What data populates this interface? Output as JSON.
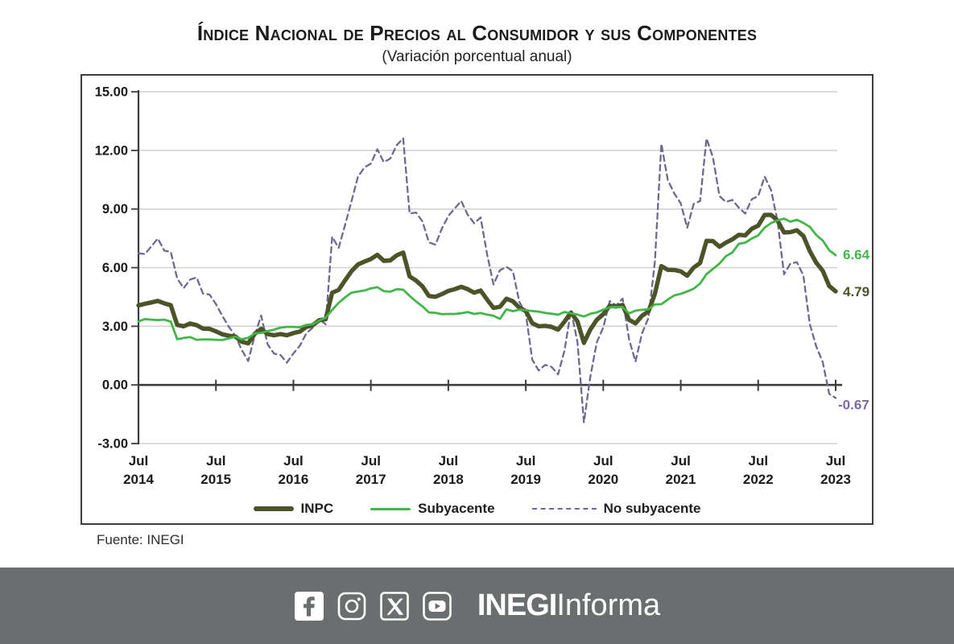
{
  "title": "Índice Nacional de Precios al Consumidor y sus Componentes",
  "subtitle": "(Variación porcentual anual)",
  "source": "Fuente: INEGI",
  "footer": {
    "background": "#6b6e6f",
    "brand_bold": "INEGI",
    "brand_light": "Informa",
    "icons": [
      "facebook-icon",
      "instagram-icon",
      "x-icon",
      "youtube-icon"
    ]
  },
  "chart_data": {
    "type": "line",
    "title": "Índice Nacional de Precios al Consumidor y sus Componentes",
    "subtitle": "(Variación porcentual anual)",
    "frequency": "monthly",
    "x_start": "Jul 2014",
    "x_end": "Jul 2023",
    "ylim": [
      -3,
      15
    ],
    "grid": true,
    "legend_position": "bottom",
    "y_ticks": [
      {
        "label": "15.00",
        "value": 15
      },
      {
        "label": "12.00",
        "value": 12
      },
      {
        "label": "9.00",
        "value": 9
      },
      {
        "label": "6.00",
        "value": 6
      },
      {
        "label": "3.00",
        "value": 3
      },
      {
        "label": "0.00",
        "value": 0
      },
      {
        "label": "-3.00",
        "value": -3
      }
    ],
    "x_tick_labels": [
      {
        "month": "Jul",
        "year": "2014"
      },
      {
        "month": "Jul",
        "year": "2015"
      },
      {
        "month": "Jul",
        "year": "2016"
      },
      {
        "month": "Jul",
        "year": "2017"
      },
      {
        "month": "Jul",
        "year": "2018"
      },
      {
        "month": "Jul",
        "year": "2019"
      },
      {
        "month": "Jul",
        "year": "2020"
      },
      {
        "month": "Jul",
        "year": "2021"
      },
      {
        "month": "Jul",
        "year": "2022"
      },
      {
        "month": "Jul",
        "year": "2023"
      }
    ],
    "series": [
      {
        "name": "INPC",
        "color": "#4d5228",
        "style": "solid",
        "width": 5.4,
        "end_label": "4.79",
        "end_label_color": "#4d5228",
        "label_dx": 9,
        "label_dy": 6,
        "values": [
          4.07,
          4.15,
          4.22,
          4.3,
          4.17,
          4.08,
          3.07,
          3.0,
          3.14,
          3.06,
          2.88,
          2.87,
          2.74,
          2.59,
          2.52,
          2.48,
          2.21,
          2.13,
          2.61,
          2.87,
          2.6,
          2.54,
          2.6,
          2.54,
          2.65,
          2.73,
          2.97,
          3.06,
          3.31,
          3.36,
          4.72,
          4.86,
          5.35,
          5.82,
          6.16,
          6.31,
          6.44,
          6.66,
          6.35,
          6.37,
          6.63,
          6.77,
          5.55,
          5.34,
          5.04,
          4.55,
          4.51,
          4.65,
          4.81,
          4.9,
          5.02,
          4.9,
          4.72,
          4.83,
          4.37,
          3.94,
          4.0,
          4.41,
          4.28,
          3.95,
          3.78,
          3.16,
          3.0,
          3.02,
          2.97,
          2.83,
          3.24,
          3.7,
          3.25,
          2.15,
          2.84,
          3.33,
          3.62,
          4.05,
          4.01,
          4.09,
          3.33,
          3.15,
          3.54,
          3.76,
          4.67,
          6.08,
          5.89,
          5.88,
          5.81,
          5.59,
          6.0,
          6.24,
          7.37,
          7.36,
          7.07,
          7.28,
          7.45,
          7.68,
          7.65,
          7.99,
          8.15,
          8.7,
          8.7,
          8.41,
          7.8,
          7.82,
          7.91,
          7.62,
          6.85,
          6.25,
          5.84,
          5.06,
          4.79
        ]
      },
      {
        "name": "Subyacente",
        "color": "#43b649",
        "style": "solid",
        "width": 2.8,
        "end_label": "6.64",
        "end_label_color": "#45b549",
        "label_dx": 9,
        "label_dy": 5,
        "values": [
          3.25,
          3.37,
          3.34,
          3.32,
          3.34,
          3.24,
          2.34,
          2.4,
          2.45,
          2.31,
          2.33,
          2.33,
          2.31,
          2.3,
          2.38,
          2.47,
          2.34,
          2.41,
          2.64,
          2.66,
          2.76,
          2.83,
          2.93,
          2.97,
          2.97,
          2.95,
          3.07,
          3.1,
          3.29,
          3.44,
          3.84,
          4.2,
          4.48,
          4.72,
          4.78,
          4.83,
          4.94,
          5.0,
          4.8,
          4.77,
          4.9,
          4.87,
          4.56,
          4.27,
          4.02,
          3.71,
          3.69,
          3.62,
          3.63,
          3.63,
          3.67,
          3.73,
          3.63,
          3.68,
          3.6,
          3.54,
          3.38,
          3.87,
          3.77,
          3.85,
          3.82,
          3.78,
          3.75,
          3.68,
          3.65,
          3.59,
          3.73,
          3.66,
          3.6,
          3.5,
          3.64,
          3.71,
          3.85,
          3.97,
          3.99,
          3.98,
          3.66,
          3.8,
          3.84,
          3.87,
          4.12,
          4.13,
          4.37,
          4.58,
          4.66,
          4.78,
          4.92,
          5.19,
          5.67,
          5.94,
          6.21,
          6.59,
          6.78,
          7.22,
          7.28,
          7.49,
          7.65,
          8.05,
          8.28,
          8.42,
          8.51,
          8.35,
          8.45,
          8.29,
          8.09,
          7.67,
          7.39,
          6.89,
          6.64
        ]
      },
      {
        "name": "No subyacente",
        "color": "#6c6a8e",
        "style": "dashed",
        "width": 2.3,
        "end_label": "-0.67",
        "end_label_color": "#7d68a8",
        "label_dx": 3,
        "label_dy": 14,
        "values": [
          6.74,
          6.69,
          7.09,
          7.49,
          6.87,
          6.81,
          5.45,
          4.95,
          5.39,
          5.5,
          4.67,
          4.63,
          4.14,
          3.53,
          2.97,
          2.51,
          1.79,
          1.22,
          2.51,
          3.55,
          2.08,
          1.6,
          1.53,
          1.14,
          1.61,
          2.01,
          2.64,
          2.93,
          3.37,
          3.1,
          7.58,
          7.01,
          8.18,
          9.4,
          10.65,
          11.13,
          11.32,
          12.06,
          11.4,
          11.58,
          12.26,
          12.62,
          8.77,
          8.82,
          8.36,
          7.29,
          7.18,
          8.0,
          8.65,
          9.03,
          9.41,
          8.71,
          8.27,
          8.57,
          6.69,
          5.14,
          5.87,
          6.04,
          5.82,
          4.25,
          3.66,
          1.29,
          0.74,
          1.03,
          0.92,
          0.54,
          1.76,
          3.82,
          2.19,
          -1.92,
          0.43,
          2.18,
          2.93,
          4.29,
          4.07,
          4.42,
          2.33,
          1.19,
          2.63,
          3.43,
          6.32,
          12.34,
          10.48,
          9.8,
          9.29,
          8.04,
          9.26,
          9.41,
          12.61,
          11.64,
          9.66,
          9.36,
          9.47,
          9.07,
          8.77,
          9.5,
          9.66,
          10.66,
          9.97,
          8.38,
          5.66,
          6.22,
          6.28,
          5.6,
          3.11,
          1.97,
          1.16,
          -0.46,
          -0.67
        ]
      }
    ]
  }
}
